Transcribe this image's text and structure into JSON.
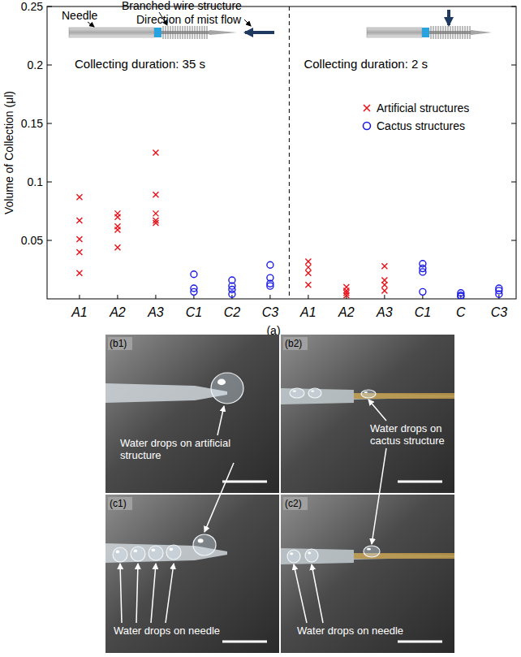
{
  "chart_data": {
    "type": "scatter",
    "y_label": "Volume of Collection (μl)",
    "panel_label": "(a)",
    "inset_labels": [
      "Needle",
      "Branched wire structure",
      "Direction of mist flow"
    ],
    "annotations": [
      "Collecting duration: 35 s",
      "Collecting duration: 2 s"
    ],
    "categories": [
      "A1",
      "A2",
      "A3",
      "C1",
      "C2",
      "C3",
      "A1",
      "A2",
      "A3",
      "C1",
      "C",
      "C3"
    ],
    "ylim": [
      0,
      0.25
    ],
    "yticks": [
      0.05,
      0.1,
      0.15,
      0.2,
      0.25
    ],
    "legend": "right",
    "series": [
      {
        "name": "Artificial structures",
        "color": "#e8141c",
        "marker": "x",
        "values": [
          [
            0.087,
            0.067,
            0.051,
            0.04,
            0.022
          ],
          [
            0.073,
            0.07,
            0.062,
            0.059,
            0.044
          ],
          [
            0.125,
            0.089,
            0.073,
            0.067,
            0.065
          ],
          null,
          null,
          null,
          [
            0.032,
            0.027,
            0.022,
            0.012
          ],
          [
            0.01,
            0.007,
            0.005,
            0.003
          ],
          [
            0.028,
            0.016,
            0.012,
            0.007
          ],
          null,
          null,
          null
        ]
      },
      {
        "name": "Cactus structures",
        "color": "#1a1ae6",
        "marker": "o",
        "values": [
          null,
          null,
          null,
          [
            0.021,
            0.009,
            0.006
          ],
          [
            0.016,
            0.011,
            0.008,
            0.004
          ],
          [
            0.029,
            0.018,
            0.013,
            0.011
          ],
          null,
          null,
          null,
          [
            0.03,
            0.026,
            0.023,
            0.006
          ],
          [
            0.005,
            0.003,
            0.002
          ],
          [
            0.009,
            0.007,
            0.004
          ]
        ]
      }
    ]
  },
  "photo_panels": [
    {
      "label": "(b1)",
      "caption": "Water drops on artificial structure"
    },
    {
      "label": "(b2)",
      "caption": "Water drops on cactus structure"
    },
    {
      "label": "(c1)",
      "caption": "Water drops on needle"
    },
    {
      "label": "(c2)",
      "caption": "Water drops on needle"
    }
  ]
}
